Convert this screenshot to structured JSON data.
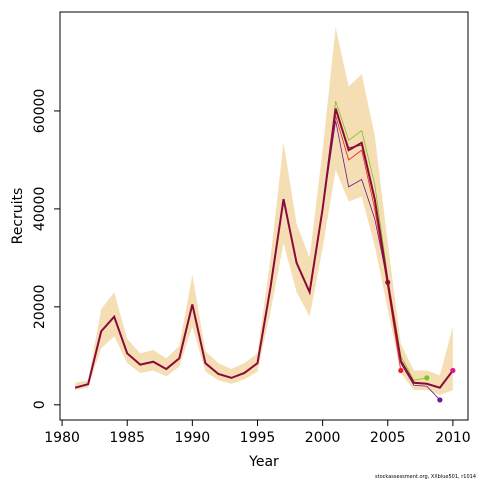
{
  "chart_data": {
    "type": "line",
    "xlabel": "Year",
    "ylabel": "Recruits",
    "footer": "stockassessment.org, XXblue501, r1014",
    "x": [
      1981,
      1982,
      1983,
      1984,
      1985,
      1986,
      1987,
      1988,
      1989,
      1990,
      1991,
      1992,
      1993,
      1994,
      1995,
      1996,
      1997,
      1998,
      1999,
      2000,
      2001,
      2002,
      2003,
      2004,
      2005,
      2006,
      2007,
      2008,
      2009,
      2010
    ],
    "band": {
      "color": "#f5deb3",
      "upper": [
        4500,
        5000,
        19500,
        23000,
        13500,
        10500,
        11200,
        9500,
        12000,
        26500,
        11000,
        8500,
        7300,
        8500,
        10500,
        30000,
        53500,
        37000,
        30000,
        52000,
        77000,
        65000,
        67500,
        55000,
        33000,
        12500,
        7000,
        7000,
        6000,
        16000
      ],
      "lower": [
        3000,
        3500,
        11500,
        14000,
        8500,
        6500,
        7000,
        5800,
        7800,
        16000,
        6800,
        5000,
        4300,
        5200,
        6800,
        19000,
        33000,
        23000,
        18000,
        32000,
        48000,
        41500,
        42500,
        32500,
        19500,
        6500,
        3000,
        3000,
        2000,
        3000
      ]
    },
    "series": [
      {
        "color": "#7fc31c",
        "values": [
          null,
          null,
          null,
          null,
          null,
          null,
          null,
          null,
          null,
          null,
          null,
          null,
          null,
          null,
          null,
          null,
          null,
          null,
          null,
          40000,
          62000,
          54000,
          56000,
          45000,
          26000,
          10000,
          5000,
          5500,
          null,
          null
        ]
      },
      {
        "color": "#e8202a",
        "values": [
          null,
          null,
          null,
          null,
          null,
          null,
          null,
          null,
          null,
          null,
          null,
          null,
          null,
          null,
          null,
          null,
          null,
          null,
          null,
          40000,
          59000,
          50000,
          52000,
          40000,
          24000,
          7000,
          null,
          null,
          null,
          null
        ]
      },
      {
        "color": "#6a1a8a",
        "values": [
          null,
          null,
          null,
          null,
          null,
          null,
          null,
          null,
          null,
          null,
          null,
          null,
          null,
          null,
          null,
          null,
          null,
          null,
          null,
          40000,
          58000,
          44500,
          46000,
          38000,
          25000,
          8500,
          4000,
          3800,
          1000,
          null
        ]
      },
      {
        "color": "#8b1a3a",
        "values": [
          null,
          null,
          null,
          null,
          null,
          null,
          null,
          null,
          null,
          null,
          null,
          null,
          null,
          null,
          null,
          null,
          null,
          null,
          null,
          40000,
          60000,
          52500,
          53000,
          41500,
          25000,
          null,
          null,
          null,
          null,
          null
        ]
      },
      {
        "color": "#e0148c",
        "values": [
          3500,
          4200,
          15000,
          18000,
          10500,
          8200,
          8800,
          7300,
          9500,
          20500,
          8500,
          6300,
          5500,
          6500,
          8500,
          24000,
          42000,
          29000,
          23000,
          40000,
          60500,
          52000,
          53500,
          42000,
          25000,
          9000,
          4500,
          4300,
          3500,
          7000
        ]
      }
    ],
    "main_color": "#8b0a3a",
    "xlim": [
      1979.84,
      2011.16
    ],
    "xticks": [
      1980,
      1985,
      1990,
      1995,
      2000,
      2005,
      2010
    ],
    "ylim": [
      -3100,
      80200
    ],
    "yticks": [
      0,
      20000,
      40000,
      60000
    ]
  }
}
